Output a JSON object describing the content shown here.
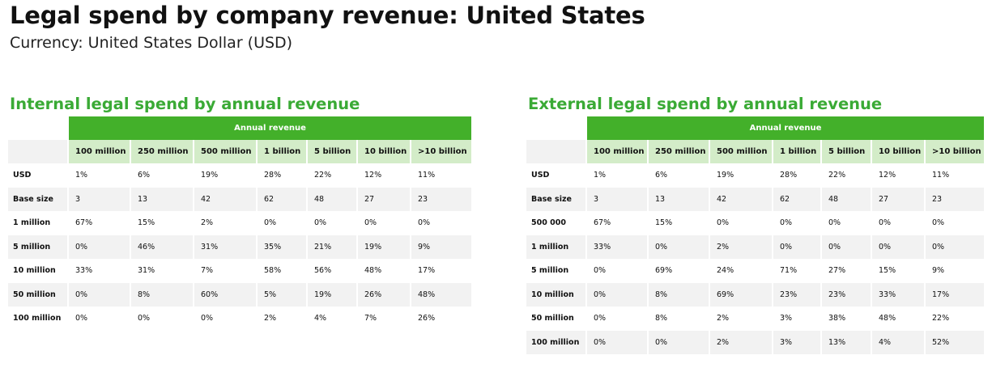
{
  "title": "Legal spend by company revenue: United States",
  "subtitle": "Currency: United States Dollar (USD)",
  "internal": {
    "title": "Internal legal spend by annual revenue",
    "group_header": "Annual revenue",
    "columns": [
      "100 million",
      "250 million",
      "500 million",
      "1 billion",
      "5 billion",
      "10 billion",
      ">10 billion"
    ],
    "rows": [
      {
        "label": "USD",
        "values": [
          "1%",
          "6%",
          "19%",
          "28%",
          "22%",
          "12%",
          "11%"
        ]
      },
      {
        "label": "Base size",
        "values": [
          "3",
          "13",
          "42",
          "62",
          "48",
          "27",
          "23"
        ]
      },
      {
        "label": "1 million",
        "values": [
          "67%",
          "15%",
          "2%",
          "0%",
          "0%",
          "0%",
          "0%"
        ]
      },
      {
        "label": "5 million",
        "values": [
          "0%",
          "46%",
          "31%",
          "35%",
          "21%",
          "19%",
          "9%"
        ]
      },
      {
        "label": "10 million",
        "values": [
          "33%",
          "31%",
          "7%",
          "58%",
          "56%",
          "48%",
          "17%"
        ]
      },
      {
        "label": "50 million",
        "values": [
          "0%",
          "8%",
          "60%",
          "5%",
          "19%",
          "26%",
          "48%"
        ]
      },
      {
        "label": "100 million",
        "values": [
          "0%",
          "0%",
          "0%",
          "2%",
          "4%",
          "7%",
          "26%"
        ]
      }
    ]
  },
  "external": {
    "title": "External legal spend by annual revenue",
    "group_header": "Annual revenue",
    "columns": [
      "100 million",
      "250 million",
      "500 million",
      "1 billion",
      "5 billion",
      "10 billion",
      ">10 billion"
    ],
    "rows": [
      {
        "label": "USD",
        "values": [
          "1%",
          "6%",
          "19%",
          "28%",
          "22%",
          "12%",
          "11%"
        ]
      },
      {
        "label": "Base size",
        "values": [
          "3",
          "13",
          "42",
          "62",
          "48",
          "27",
          "23"
        ]
      },
      {
        "label": "500 000",
        "values": [
          "67%",
          "15%",
          "0%",
          "0%",
          "0%",
          "0%",
          "0%"
        ]
      },
      {
        "label": "1 million",
        "values": [
          "33%",
          "0%",
          "2%",
          "0%",
          "0%",
          "0%",
          "0%"
        ]
      },
      {
        "label": "5 million",
        "values": [
          "0%",
          "69%",
          "24%",
          "71%",
          "27%",
          "15%",
          "9%"
        ]
      },
      {
        "label": "10 million",
        "values": [
          "0%",
          "8%",
          "69%",
          "23%",
          "23%",
          "33%",
          "17%"
        ]
      },
      {
        "label": "50 million",
        "values": [
          "0%",
          "8%",
          "2%",
          "3%",
          "38%",
          "48%",
          "22%"
        ]
      },
      {
        "label": "100 million",
        "values": [
          "0%",
          "0%",
          "2%",
          "3%",
          "13%",
          "4%",
          "52%"
        ]
      }
    ]
  }
}
